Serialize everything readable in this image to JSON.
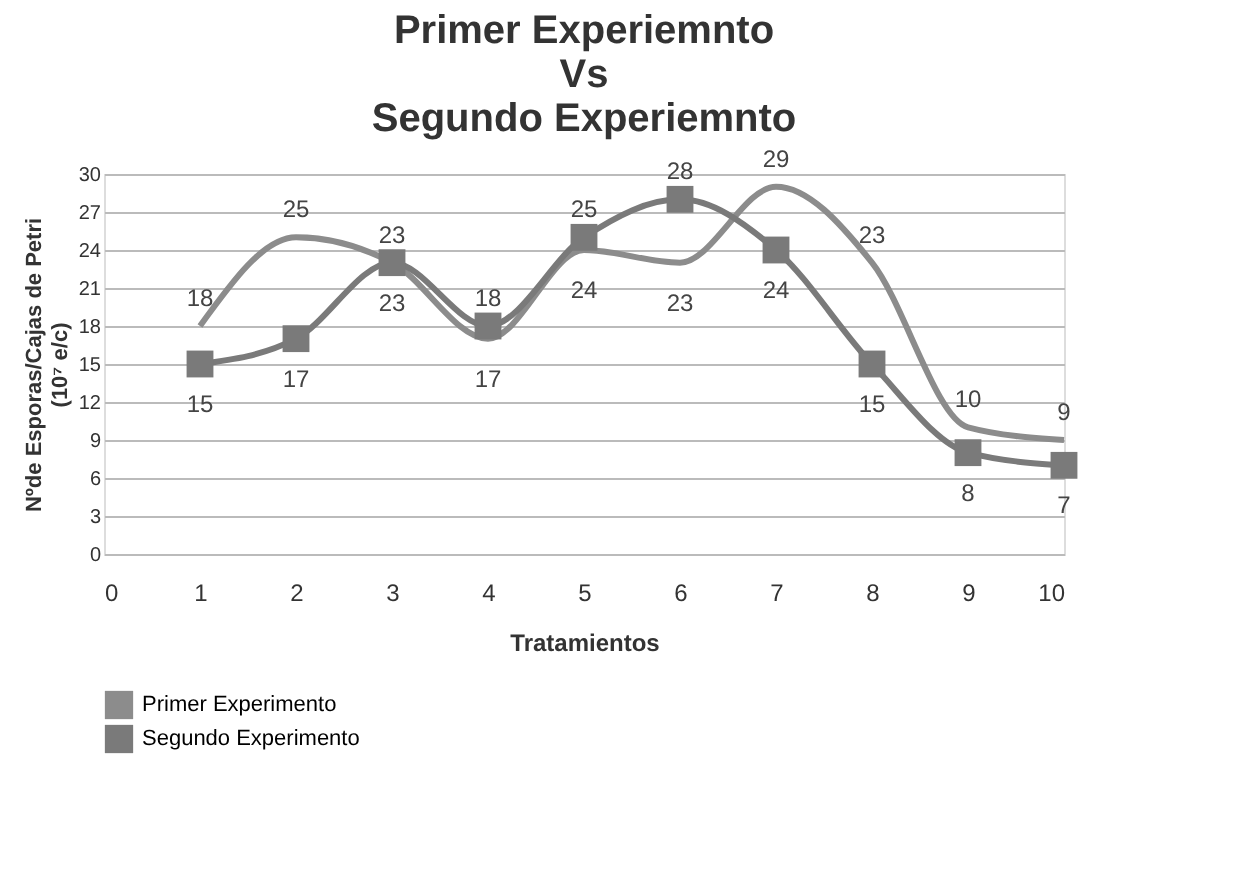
{
  "chart_data": {
    "type": "line",
    "title": "Primer Experiemnto\nVs\nSegundo Experiemnto",
    "xlabel": "Tratamientos",
    "ylabel": "Nºde Esporas/Cajas de Petri\n(10⁷ e/c)",
    "x": [
      1,
      2,
      3,
      4,
      5,
      6,
      7,
      8,
      9,
      10
    ],
    "series": [
      {
        "name": "Primer Experimento",
        "color": "#8c8c8c",
        "marker": "none",
        "values": [
          18,
          25,
          23,
          17,
          24,
          23,
          29,
          23,
          10,
          9
        ]
      },
      {
        "name": "Segundo Experimento",
        "color": "#7a7a7a",
        "marker": "square",
        "values": [
          15,
          17,
          23,
          18,
          25,
          28,
          24,
          15,
          8,
          7
        ]
      }
    ],
    "xlim": [
      0,
      10
    ],
    "xticks": [
      0,
      1,
      2,
      3,
      4,
      5,
      6,
      7,
      8,
      9,
      10
    ],
    "ylim": [
      0,
      30
    ],
    "yticks": [
      0,
      3,
      6,
      9,
      12,
      15,
      18,
      21,
      24,
      27,
      30
    ],
    "grid": "y",
    "legend": "bottom left",
    "data_labels": true,
    "line_style": "solid"
  }
}
